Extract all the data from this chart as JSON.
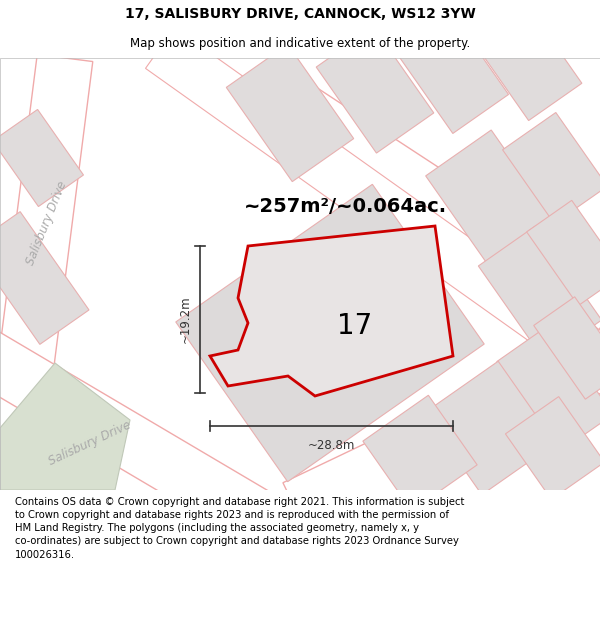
{
  "title": "17, SALISBURY DRIVE, CANNOCK, WS12 3YW",
  "subtitle": "Map shows position and indicative extent of the property.",
  "area_text": "~257m²/~0.064ac.",
  "number_label": "17",
  "width_label": "~28.8m",
  "height_label": "~19.2m",
  "footer_text": "Contains OS data © Crown copyright and database right 2021. This information is subject to Crown copyright and database rights 2023 and is reproduced with the permission of HM Land Registry. The polygons (including the associated geometry, namely x, y co-ordinates) are subject to Crown copyright and database rights 2023 Ordnance Survey 100026316.",
  "bg_color": "#ffffff",
  "map_bg": "#f2eeee",
  "road_fill": "#ffffff",
  "road_line": "#f0aaaa",
  "parcel_fill": "#e0dcdc",
  "parcel_line": "#e8b0b0",
  "prop_fill": "#e8e4e4",
  "prop_line": "#cc0000",
  "label_color": "#aaaaaa",
  "dim_color": "#333333",
  "salisbury_upper": "Salisbury Drive",
  "salisbury_lower": "Salisbury Drive",
  "title_fontsize": 10,
  "subtitle_fontsize": 8.5,
  "footer_fontsize": 7.2,
  "area_fontsize": 14,
  "number_fontsize": 20,
  "dim_fontsize": 8.5,
  "road_label_fontsize": 8.5
}
